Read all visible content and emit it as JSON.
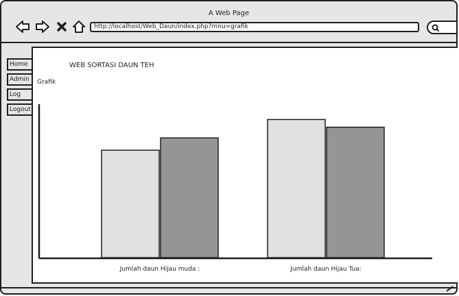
{
  "window": {
    "title": "A Web Page",
    "url": "http://localhost/Web_Daun/index.php?mnu=grafik"
  },
  "icons": {
    "back": "arrow-left-icon",
    "forward": "arrow-right-icon",
    "stop": "close-icon",
    "home": "home-icon",
    "search": "search-icon"
  },
  "sidebar": {
    "items": [
      {
        "label": "Home"
      },
      {
        "label": "Admin"
      },
      {
        "label": "Log"
      },
      {
        "label": "Logout"
      }
    ]
  },
  "main": {
    "heading": "WEB SORTASI DAUN TEH",
    "section_label": "Grafik"
  },
  "chart_data": {
    "type": "bar",
    "categories": [
      "Jumlah daun Hijau muda :",
      "Jumlah daun Hijau Tua:"
    ],
    "series": [
      {
        "values": [
          70,
          90
        ],
        "color": "#e0e0e0"
      },
      {
        "values": [
          78,
          85
        ],
        "color": "#959595"
      }
    ],
    "ylim": [
      0,
      100
    ],
    "grid": false,
    "legend": "none",
    "title": "",
    "xlabel": "",
    "ylabel": ""
  }
}
